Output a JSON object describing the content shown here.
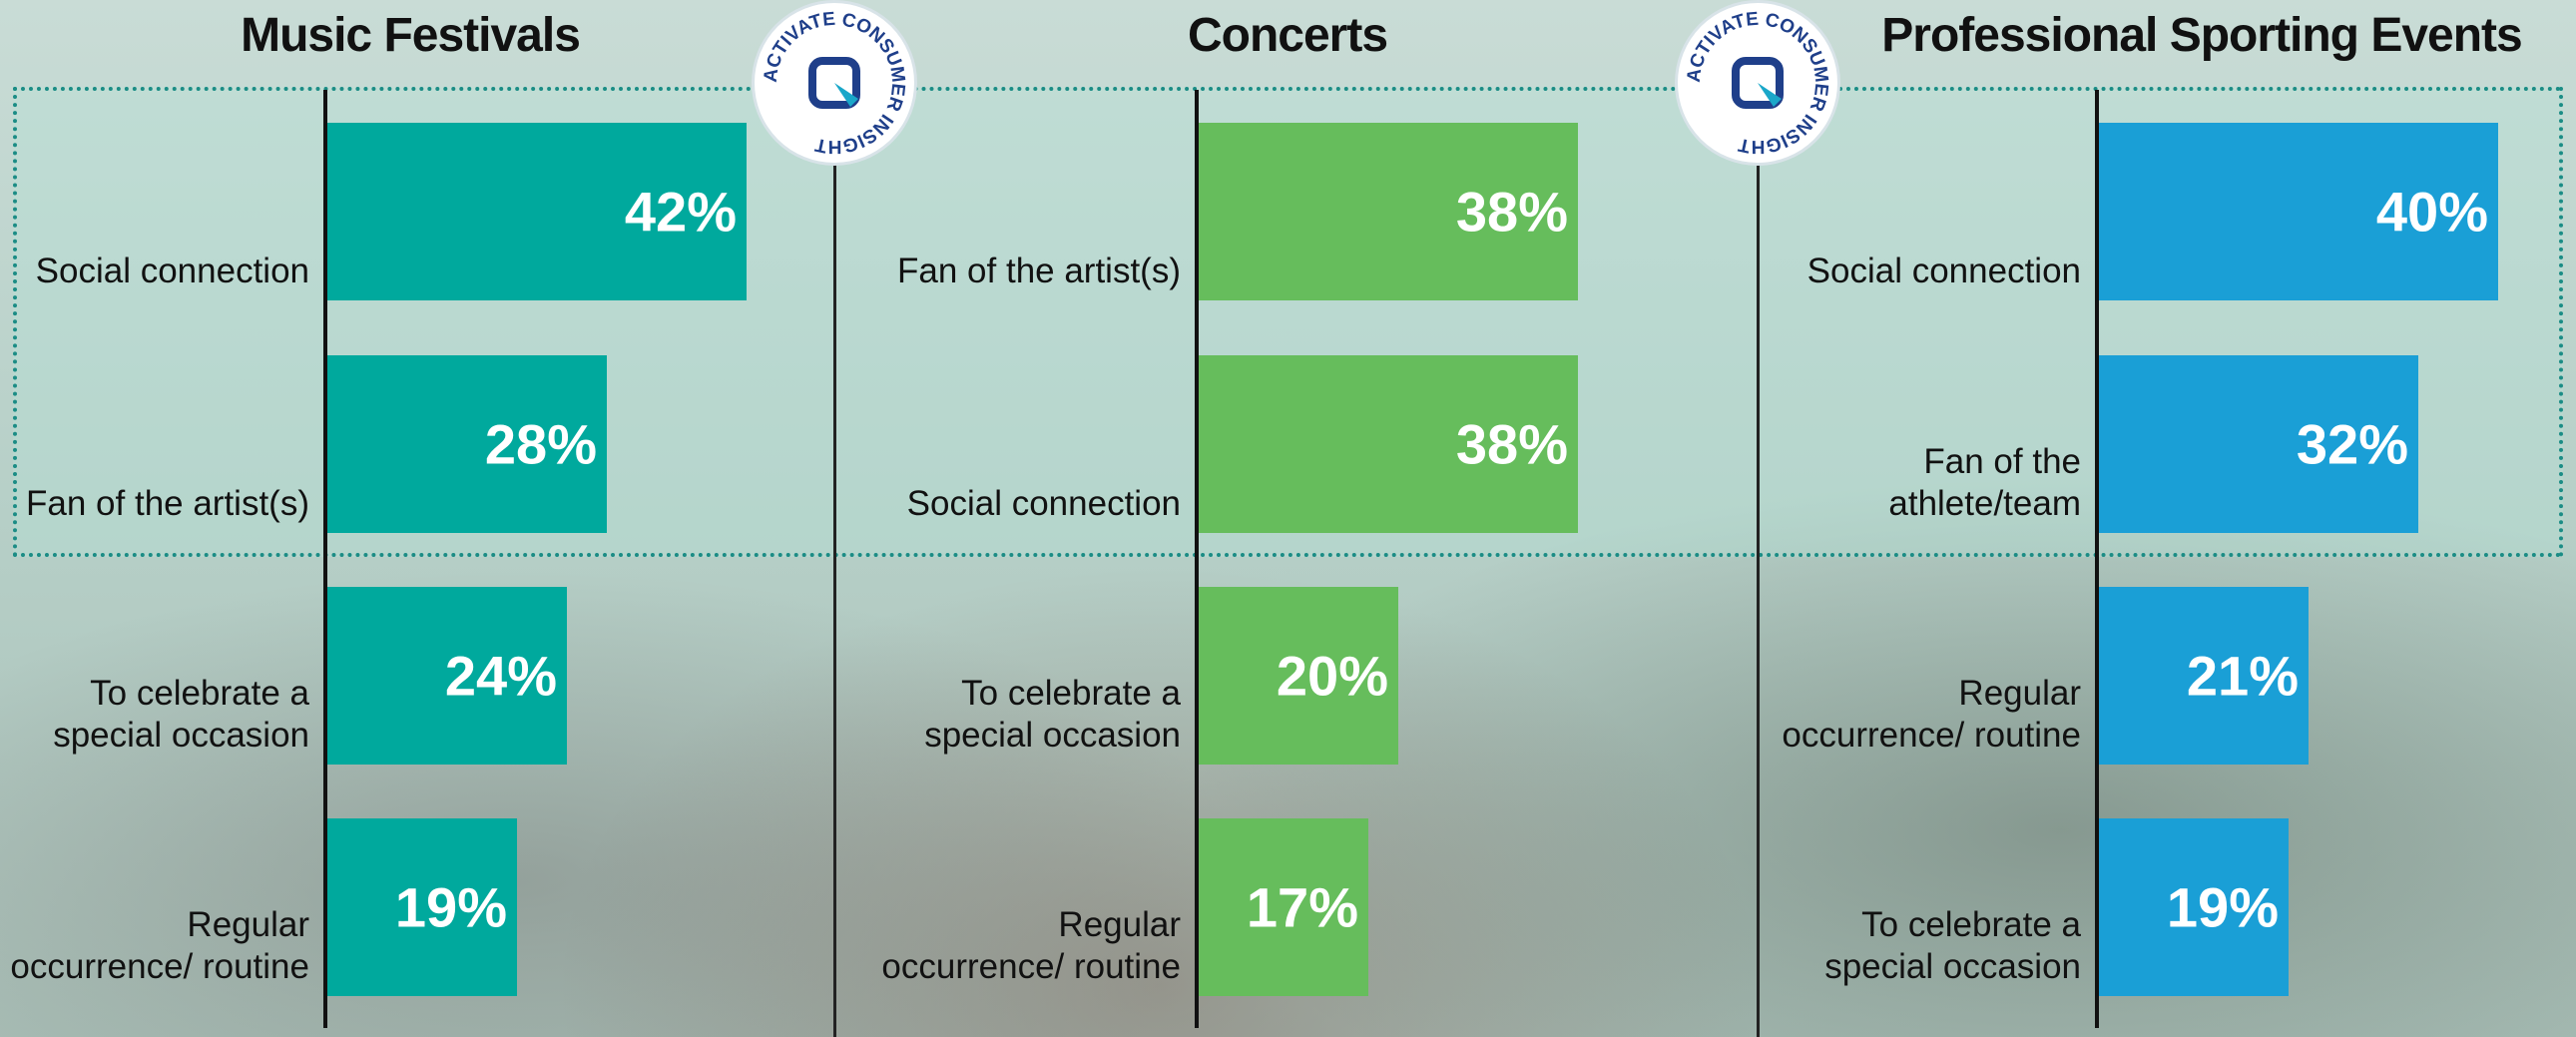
{
  "logo_text": "ACTIVATE CONSUMER INSIGHT",
  "chart_data": [
    {
      "type": "bar",
      "orientation": "horizontal",
      "title": "Music Festivals",
      "color": "#00a99d",
      "categories": [
        "Social connection",
        "Fan of the artist(s)",
        "To celebrate a special occasion",
        "Regular occurrence/ routine"
      ],
      "values": [
        42,
        28,
        24,
        19
      ],
      "value_labels": [
        "42%",
        "28%",
        "24%",
        "19%"
      ]
    },
    {
      "type": "bar",
      "orientation": "horizontal",
      "title": "Concerts",
      "color": "#66bd5c",
      "categories": [
        "Fan of the artist(s)",
        "Social connection",
        "To celebrate a special occasion",
        "Regular occurrence/ routine"
      ],
      "values": [
        38,
        38,
        20,
        17
      ],
      "value_labels": [
        "38%",
        "38%",
        "20%",
        "17%"
      ]
    },
    {
      "type": "bar",
      "orientation": "horizontal",
      "title": "Professional Sporting Events",
      "color": "#1a9fd6",
      "categories": [
        "Social connection",
        "Fan of the athlete/team",
        "Regular occurrence/ routine",
        "To celebrate a special occasion"
      ],
      "values": [
        40,
        32,
        21,
        19
      ],
      "value_labels": [
        "40%",
        "32%",
        "21%",
        "19%"
      ]
    }
  ]
}
